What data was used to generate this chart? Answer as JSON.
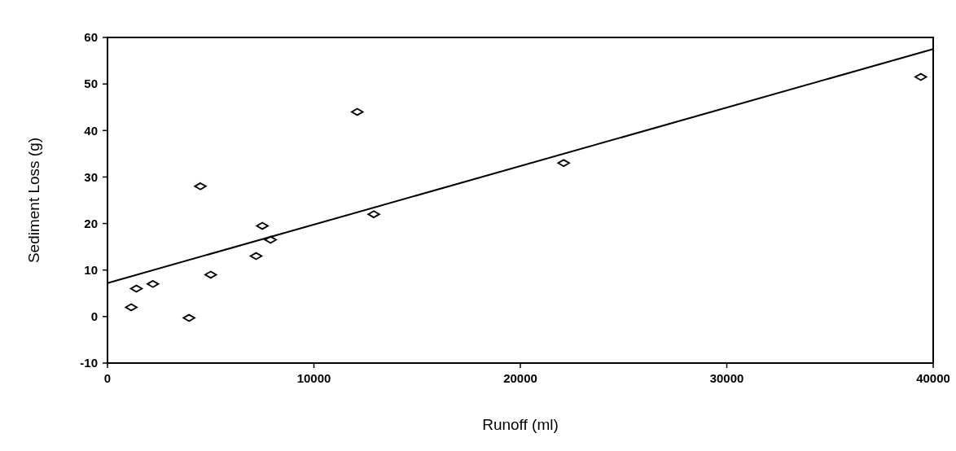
{
  "chart_data": {
    "type": "scatter",
    "xlabel": "Runoff (ml)",
    "ylabel": "Sediment Loss (g)",
    "xlim": [
      0,
      40000
    ],
    "xticks": [
      0,
      10000,
      20000,
      30000,
      40000
    ],
    "ylim": [
      -10,
      60
    ],
    "yticks": [
      -10,
      0,
      10,
      20,
      30,
      40,
      50,
      60
    ],
    "grid": false,
    "marker": "diamond",
    "series": [
      {
        "color": "#000000",
        "x": [
          1150,
          1400,
          2200,
          3950,
          4500,
          5000,
          7200,
          7500,
          7900,
          12100,
          12900,
          22100,
          39400
        ],
        "values": [
          2,
          6,
          7,
          -0.3,
          28,
          9,
          13,
          19.5,
          16.5,
          44,
          22,
          33,
          51.5
        ]
      },
      {
        "type": "line",
        "color": "#000000",
        "marker": "none",
        "line_style": "solid",
        "x": [
          0,
          40000
        ],
        "values": [
          7.2,
          57.5
        ]
      }
    ]
  }
}
